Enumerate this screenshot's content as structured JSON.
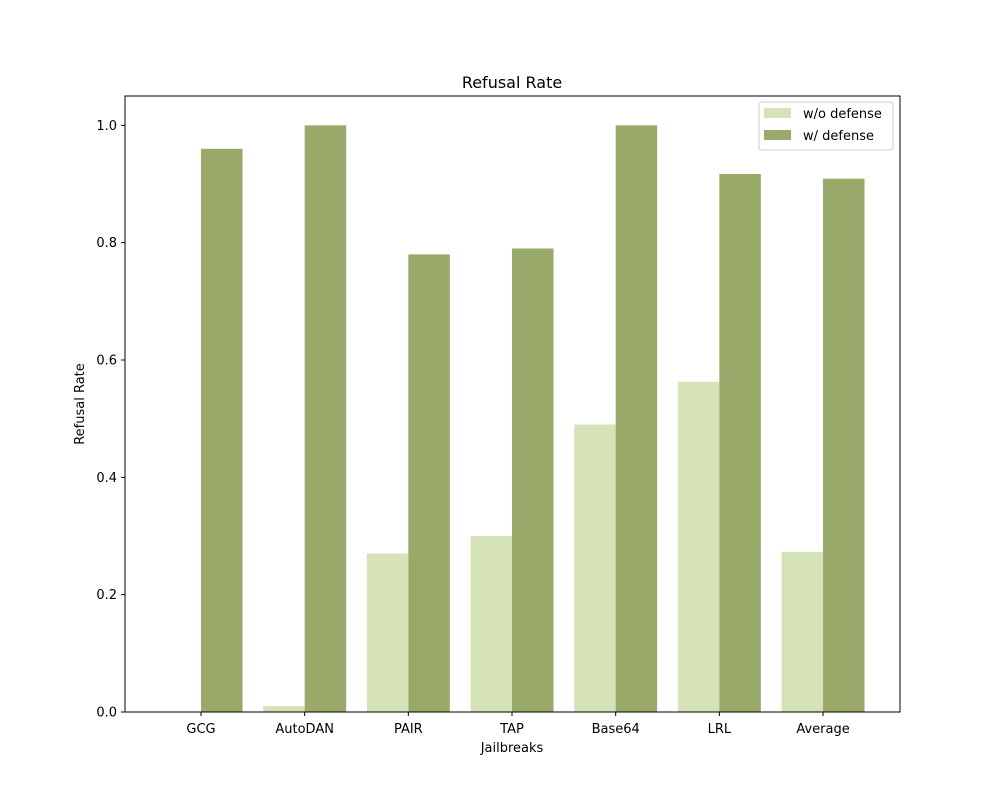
{
  "chart_data": {
    "type": "bar",
    "title": "Refusal Rate",
    "xlabel": "Jailbreaks",
    "ylabel": "Refusal Rate",
    "categories": [
      "GCG",
      "AutoDAN",
      "PAIR",
      "TAP",
      "Base64",
      "LRL",
      "Average"
    ],
    "series": [
      {
        "name": "w/o defense",
        "color": "#d6e3b8",
        "values": [
          0.0,
          0.01,
          0.27,
          0.3,
          0.49,
          0.563,
          0.273
        ]
      },
      {
        "name": "w/ defense",
        "color": "#98a969",
        "values": [
          0.96,
          1.0,
          0.78,
          0.79,
          1.0,
          0.917,
          0.909
        ]
      }
    ],
    "ylim": [
      0,
      1.05
    ],
    "yticks": [
      "0.0",
      "0.2",
      "0.4",
      "0.6",
      "0.8",
      "1.0"
    ],
    "grid": false,
    "legend_position": "top-right"
  }
}
